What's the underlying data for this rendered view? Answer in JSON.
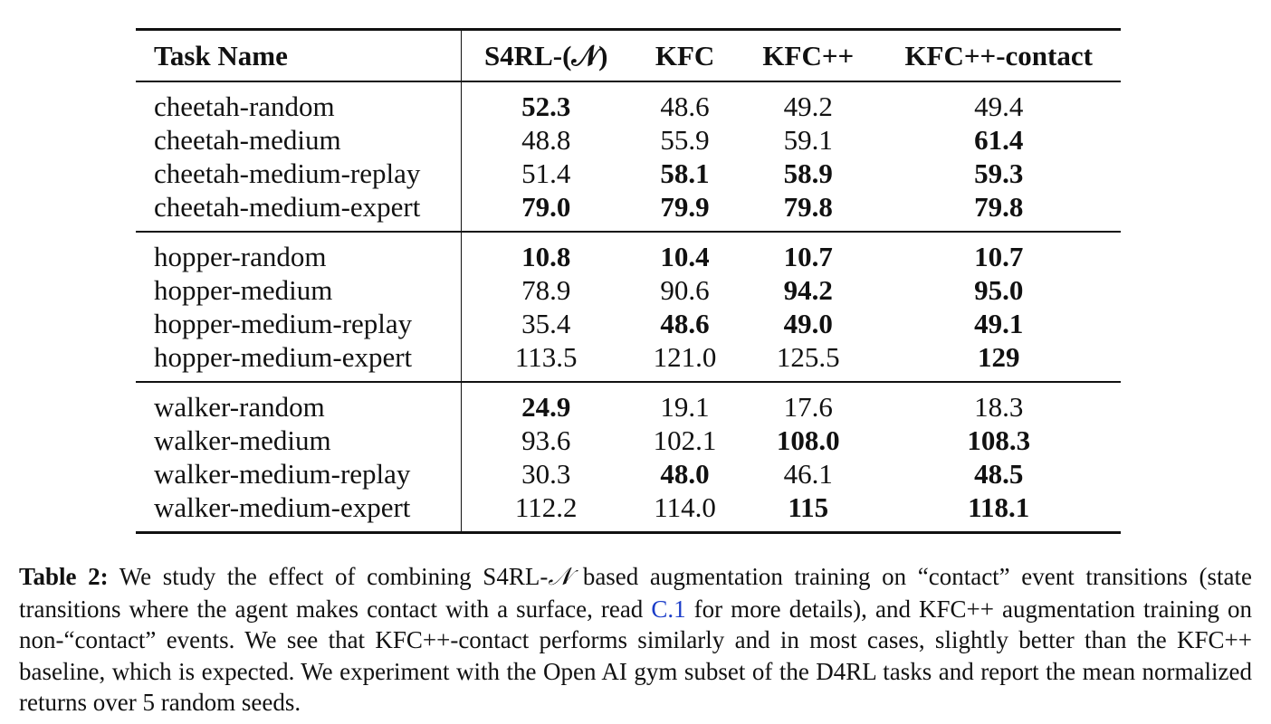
{
  "table": {
    "headers": [
      "Task Name",
      "S4RL-(𝒩)",
      "KFC",
      "KFC++",
      "KFC++-contact"
    ],
    "groups": [
      {
        "rows": [
          {
            "task": "cheetah-random",
            "values": [
              "52.3",
              "48.6",
              "49.2",
              "49.4"
            ],
            "bold": [
              true,
              false,
              false,
              false
            ]
          },
          {
            "task": "cheetah-medium",
            "values": [
              "48.8",
              "55.9",
              "59.1",
              "61.4"
            ],
            "bold": [
              false,
              false,
              false,
              true
            ]
          },
          {
            "task": "cheetah-medium-replay",
            "values": [
              "51.4",
              "58.1",
              "58.9",
              "59.3"
            ],
            "bold": [
              false,
              true,
              true,
              true
            ]
          },
          {
            "task": "cheetah-medium-expert",
            "values": [
              "79.0",
              "79.9",
              "79.8",
              "79.8"
            ],
            "bold": [
              true,
              true,
              true,
              true
            ]
          }
        ]
      },
      {
        "rows": [
          {
            "task": "hopper-random",
            "values": [
              "10.8",
              "10.4",
              "10.7",
              "10.7"
            ],
            "bold": [
              true,
              true,
              true,
              true
            ]
          },
          {
            "task": "hopper-medium",
            "values": [
              "78.9",
              "90.6",
              "94.2",
              "95.0"
            ],
            "bold": [
              false,
              false,
              true,
              true
            ]
          },
          {
            "task": "hopper-medium-replay",
            "values": [
              "35.4",
              "48.6",
              "49.0",
              "49.1"
            ],
            "bold": [
              false,
              true,
              true,
              true
            ]
          },
          {
            "task": "hopper-medium-expert",
            "values": [
              "113.5",
              "121.0",
              "125.5",
              "129"
            ],
            "bold": [
              false,
              false,
              false,
              true
            ]
          }
        ]
      },
      {
        "rows": [
          {
            "task": "walker-random",
            "values": [
              "24.9",
              "19.1",
              "17.6",
              "18.3"
            ],
            "bold": [
              true,
              false,
              false,
              false
            ]
          },
          {
            "task": "walker-medium",
            "values": [
              "93.6",
              "102.1",
              "108.0",
              "108.3"
            ],
            "bold": [
              false,
              false,
              true,
              true
            ]
          },
          {
            "task": "walker-medium-replay",
            "values": [
              "30.3",
              "48.0",
              "46.1",
              "48.5"
            ],
            "bold": [
              false,
              true,
              false,
              true
            ]
          },
          {
            "task": "walker-medium-expert",
            "values": [
              "112.2",
              "114.0",
              "115",
              "118.1"
            ],
            "bold": [
              false,
              false,
              true,
              true
            ]
          }
        ]
      }
    ]
  },
  "caption": {
    "label": "Table 2:",
    "text_1": " We study the effect of combining S4RL-",
    "symbol": "𝒩",
    "text_2": " based augmentation training on “contact” event transitions (state transitions where the agent makes contact with a surface, read ",
    "ref": "C.1",
    "text_3": " for more details), and KFC++ augmentation training on non-“contact” events. We see that KFC++-contact performs similarly and in most cases, slightly better than the KFC++ baseline, which is expected. We experiment with the Open AI gym subset of the D4RL tasks and report the mean normalized returns over 5 random seeds."
  }
}
